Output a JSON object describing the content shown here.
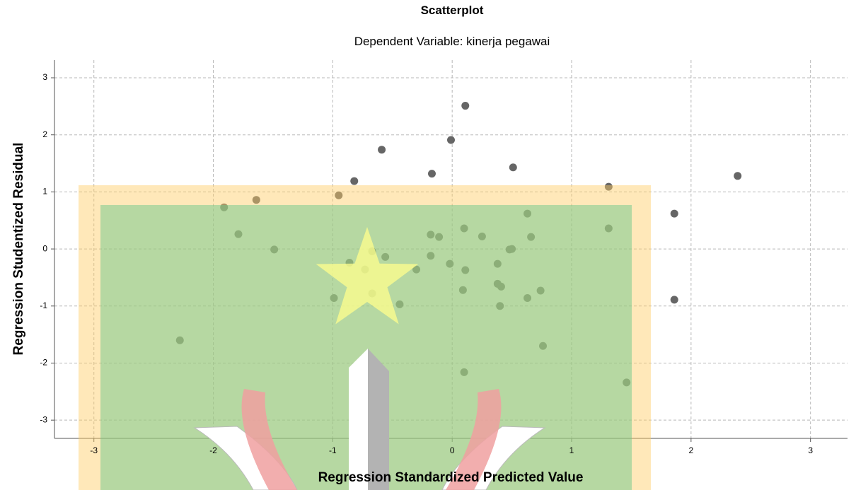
{
  "chart_data": {
    "type": "scatter",
    "title": "Scatterplot",
    "subtitle": "Dependent Variable: kinerja pegawai",
    "x_label": "Regression Standardized Predicted Value",
    "y_label": "Regression Studentized Residual",
    "color": "#666666",
    "grid": true,
    "xlim": [
      -3.33,
      3.31
    ],
    "ylim": [
      -3.32,
      3.31
    ],
    "xticks": [
      -3,
      -2,
      -1,
      0,
      1,
      2,
      3
    ],
    "yticks": [
      -3,
      -2,
      -1,
      0,
      1,
      2,
      3
    ],
    "x": [
      0.11,
      -0.01,
      -0.59,
      0.51,
      -0.17,
      -0.82,
      2.39,
      -0.95,
      -1.64,
      1.31,
      -1.91,
      1.86,
      0.63,
      -1.79,
      -0.18,
      -0.11,
      0.1,
      0.25,
      0.66,
      1.31,
      -1.49,
      -0.67,
      -0.56,
      -0.18,
      0.5,
      0.48,
      -0.86,
      -0.73,
      -0.3,
      -0.02,
      0.11,
      0.38,
      0.38,
      0.41,
      0.09,
      0.74,
      -0.67,
      -0.99,
      0.63,
      -0.44,
      0.4,
      1.86,
      -2.28,
      0.76,
      0.1,
      1.46
    ],
    "values": [
      2.51,
      1.91,
      1.74,
      1.43,
      1.32,
      1.19,
      1.28,
      0.94,
      0.86,
      1.09,
      0.73,
      0.62,
      0.62,
      0.26,
      0.25,
      0.21,
      0.36,
      0.22,
      0.21,
      0.36,
      -0.01,
      -0.04,
      -0.14,
      -0.12,
      0.0,
      -0.01,
      -0.24,
      -0.36,
      -0.36,
      -0.26,
      -0.37,
      -0.26,
      -0.61,
      -0.66,
      -0.72,
      -0.73,
      -0.78,
      -0.86,
      -0.86,
      -0.97,
      -1.0,
      -0.89,
      -1.6,
      -1.7,
      -2.16,
      -2.34
    ]
  }
}
